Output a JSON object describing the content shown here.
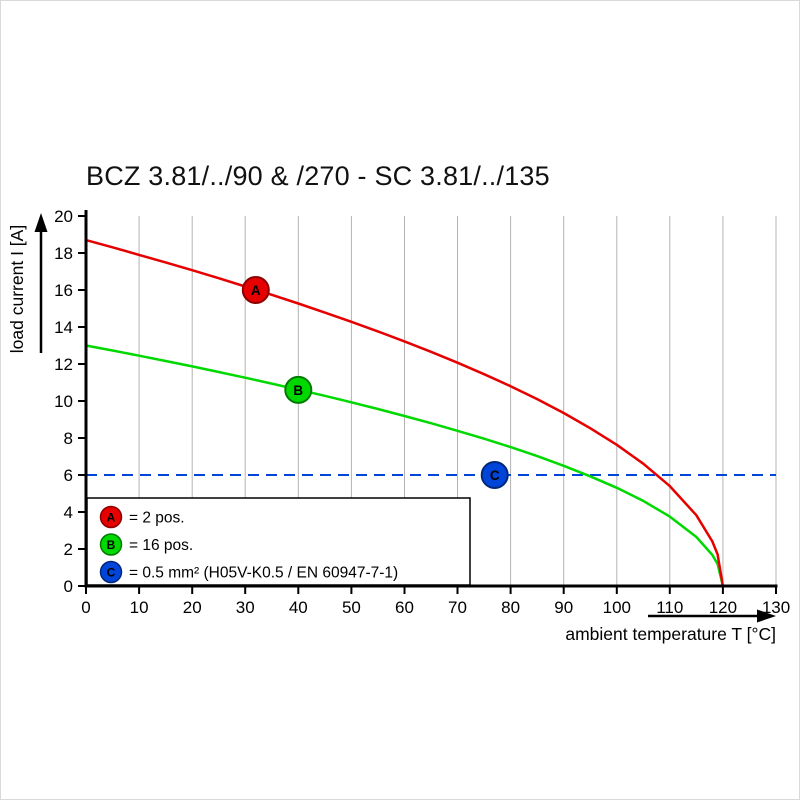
{
  "chart_data": {
    "type": "line",
    "title": "BCZ 3.81/../90 & /270 - SC 3.81/../135",
    "xlabel": "ambient temperature T [°C]",
    "ylabel": "load current I [A]",
    "xlim": [
      0,
      130
    ],
    "ylim": [
      0,
      20
    ],
    "xticks": [
      0,
      10,
      20,
      30,
      40,
      50,
      60,
      70,
      80,
      90,
      100,
      110,
      120,
      130
    ],
    "yticks": [
      0,
      2,
      4,
      6,
      8,
      10,
      12,
      14,
      16,
      18,
      20
    ],
    "grid": "vertical",
    "series": [
      {
        "name": "A",
        "label": "= 2 pos.",
        "color": "#e60000",
        "marker_stroke": "#8c0000",
        "marker": {
          "x": 32,
          "y": 16
        },
        "points": [
          [
            0,
            18.7
          ],
          [
            5,
            18.31
          ],
          [
            10,
            17.9
          ],
          [
            15,
            17.49
          ],
          [
            20,
            17.07
          ],
          [
            25,
            16.64
          ],
          [
            30,
            16.19
          ],
          [
            35,
            15.74
          ],
          [
            40,
            15.27
          ],
          [
            45,
            14.78
          ],
          [
            50,
            14.28
          ],
          [
            55,
            13.76
          ],
          [
            60,
            13.22
          ],
          [
            65,
            12.66
          ],
          [
            70,
            12.07
          ],
          [
            75,
            11.45
          ],
          [
            80,
            10.8
          ],
          [
            85,
            10.1
          ],
          [
            90,
            9.35
          ],
          [
            95,
            8.53
          ],
          [
            100,
            7.63
          ],
          [
            105,
            6.61
          ],
          [
            110,
            5.4
          ],
          [
            115,
            3.82
          ],
          [
            118,
            2.41
          ],
          [
            119,
            1.71
          ],
          [
            120,
            0
          ]
        ]
      },
      {
        "name": "B",
        "label": "= 16 pos.",
        "color": "#00d900",
        "marker_stroke": "#007a00",
        "marker": {
          "x": 40,
          "y": 10.6
        },
        "points": [
          [
            0,
            13
          ],
          [
            5,
            12.73
          ],
          [
            10,
            12.45
          ],
          [
            15,
            12.16
          ],
          [
            20,
            11.87
          ],
          [
            25,
            11.57
          ],
          [
            30,
            11.26
          ],
          [
            35,
            10.94
          ],
          [
            40,
            10.61
          ],
          [
            45,
            10.28
          ],
          [
            50,
            9.93
          ],
          [
            55,
            9.57
          ],
          [
            60,
            9.19
          ],
          [
            65,
            8.8
          ],
          [
            70,
            8.39
          ],
          [
            75,
            7.96
          ],
          [
            80,
            7.51
          ],
          [
            85,
            7.02
          ],
          [
            90,
            6.5
          ],
          [
            95,
            5.93
          ],
          [
            100,
            5.31
          ],
          [
            105,
            4.6
          ],
          [
            110,
            3.75
          ],
          [
            115,
            2.65
          ],
          [
            118,
            1.68
          ],
          [
            119,
            1.19
          ],
          [
            120,
            0
          ]
        ]
      }
    ],
    "reference_line": {
      "name": "C",
      "label": "= 0.5 mm² (H05V-K0.5 / EN 60947-7-1)",
      "y": 6,
      "style": "dashed",
      "color": "#0045d9",
      "marker_stroke": "#00287a",
      "marker": {
        "x": 77,
        "y": 6
      }
    }
  },
  "legend": {
    "items": [
      {
        "letter": "A",
        "color": "#e60000",
        "stroke": "#8c0000",
        "label": "= 2 pos."
      },
      {
        "letter": "B",
        "color": "#00d900",
        "stroke": "#007a00",
        "label": "= 16 pos."
      },
      {
        "letter": "C",
        "color": "#0045d9",
        "stroke": "#00287a",
        "label": "= 0.5 mm² (H05V-K0.5 / EN 60947-7-1)"
      }
    ]
  }
}
